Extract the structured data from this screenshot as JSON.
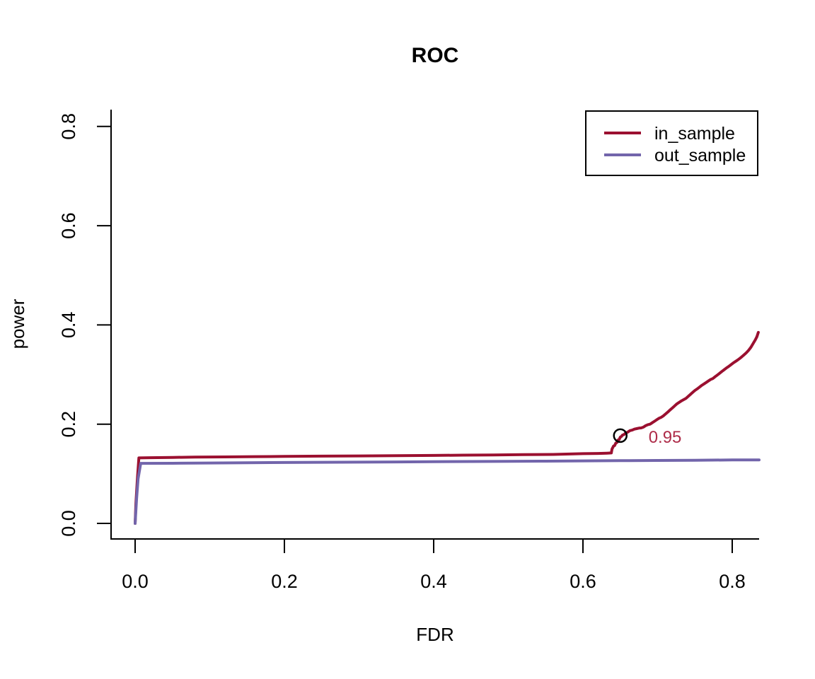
{
  "chart_data": {
    "type": "line",
    "title": "ROC",
    "xlabel": "FDR",
    "ylabel": "power",
    "xlim": [
      0,
      0.836
    ],
    "ylim": [
      0,
      0.836
    ],
    "xticks": [
      0.0,
      0.2,
      0.4,
      0.6,
      0.8
    ],
    "yticks": [
      0.0,
      0.2,
      0.4,
      0.6,
      0.8
    ],
    "xtick_labels": [
      "0.0",
      "0.2",
      "0.4",
      "0.6",
      "0.8"
    ],
    "ytick_labels": [
      "0.0",
      "0.2",
      "0.4",
      "0.6",
      "0.8"
    ],
    "grid": false,
    "box_type": "l-shaped",
    "axis_color": "#000000",
    "legend": {
      "position": "top-right",
      "border_color": "#000000",
      "entries": [
        {
          "label": "in_sample",
          "color": "#9B1030"
        },
        {
          "label": "out_sample",
          "color": "#7265AB"
        }
      ]
    },
    "annotation": {
      "circle_point": [
        0.65,
        0.177
      ],
      "circle_color": "#000000",
      "label": "0.95",
      "label_point": [
        0.71,
        0.175
      ],
      "label_color": "#AE2C49"
    },
    "series": [
      {
        "name": "in_sample",
        "color": "#9B1030",
        "width": 4,
        "points": [
          [
            0,
            0
          ],
          [
            0.001,
            0.04
          ],
          [
            0.003,
            0.09
          ],
          [
            0.005,
            0.132
          ],
          [
            0.02,
            0.1325
          ],
          [
            0.05,
            0.133
          ],
          [
            0.08,
            0.1335
          ],
          [
            0.12,
            0.134
          ],
          [
            0.16,
            0.1345
          ],
          [
            0.2,
            0.135
          ],
          [
            0.25,
            0.1355
          ],
          [
            0.3,
            0.136
          ],
          [
            0.35,
            0.1365
          ],
          [
            0.4,
            0.137
          ],
          [
            0.44,
            0.1375
          ],
          [
            0.48,
            0.138
          ],
          [
            0.52,
            0.1385
          ],
          [
            0.56,
            0.139
          ],
          [
            0.6,
            0.1405
          ],
          [
            0.62,
            0.141
          ],
          [
            0.632,
            0.1415
          ],
          [
            0.638,
            0.142
          ],
          [
            0.639,
            0.15
          ],
          [
            0.64,
            0.153
          ],
          [
            0.641,
            0.156
          ],
          [
            0.6425,
            0.157
          ],
          [
            0.644,
            0.162
          ],
          [
            0.6455,
            0.163
          ],
          [
            0.647,
            0.168
          ],
          [
            0.6485,
            0.169
          ],
          [
            0.65,
            0.174
          ],
          [
            0.6515,
            0.175
          ],
          [
            0.653,
            0.178
          ],
          [
            0.655,
            0.179
          ],
          [
            0.657,
            0.182
          ],
          [
            0.66,
            0.184
          ],
          [
            0.663,
            0.187
          ],
          [
            0.666,
            0.188
          ],
          [
            0.669,
            0.19
          ],
          [
            0.672,
            0.191
          ],
          [
            0.675,
            0.192
          ],
          [
            0.678,
            0.1925
          ],
          [
            0.681,
            0.194
          ],
          [
            0.684,
            0.197
          ],
          [
            0.687,
            0.199
          ],
          [
            0.69,
            0.2
          ],
          [
            0.693,
            0.203
          ],
          [
            0.696,
            0.206
          ],
          [
            0.699,
            0.209
          ],
          [
            0.702,
            0.212
          ],
          [
            0.705,
            0.214
          ],
          [
            0.708,
            0.217
          ],
          [
            0.711,
            0.221
          ],
          [
            0.714,
            0.225
          ],
          [
            0.717,
            0.229
          ],
          [
            0.72,
            0.233
          ],
          [
            0.723,
            0.237
          ],
          [
            0.726,
            0.241
          ],
          [
            0.729,
            0.244
          ],
          [
            0.732,
            0.247
          ],
          [
            0.735,
            0.2495
          ],
          [
            0.738,
            0.252
          ],
          [
            0.741,
            0.256
          ],
          [
            0.744,
            0.26
          ],
          [
            0.747,
            0.264
          ],
          [
            0.75,
            0.268
          ],
          [
            0.753,
            0.271
          ],
          [
            0.756,
            0.2745
          ],
          [
            0.759,
            0.278
          ],
          [
            0.762,
            0.281
          ],
          [
            0.765,
            0.284
          ],
          [
            0.768,
            0.287
          ],
          [
            0.771,
            0.29
          ],
          [
            0.774,
            0.292
          ],
          [
            0.777,
            0.2955
          ],
          [
            0.78,
            0.299
          ],
          [
            0.783,
            0.3025
          ],
          [
            0.786,
            0.306
          ],
          [
            0.789,
            0.3095
          ],
          [
            0.792,
            0.313
          ],
          [
            0.795,
            0.316
          ],
          [
            0.798,
            0.3195
          ],
          [
            0.801,
            0.323
          ],
          [
            0.804,
            0.326
          ],
          [
            0.807,
            0.329
          ],
          [
            0.81,
            0.3325
          ],
          [
            0.813,
            0.336
          ],
          [
            0.816,
            0.34
          ],
          [
            0.819,
            0.344
          ],
          [
            0.822,
            0.349
          ],
          [
            0.825,
            0.355
          ],
          [
            0.828,
            0.3625
          ],
          [
            0.831,
            0.37
          ],
          [
            0.833,
            0.376
          ],
          [
            0.835,
            0.385
          ]
        ]
      },
      {
        "name": "out_sample",
        "color": "#7265AB",
        "width": 4,
        "points": [
          [
            0,
            0
          ],
          [
            0.002,
            0.05
          ],
          [
            0.004,
            0.09
          ],
          [
            0.0075,
            0.121
          ],
          [
            0.05,
            0.1212
          ],
          [
            0.1,
            0.1217
          ],
          [
            0.15,
            0.1222
          ],
          [
            0.2,
            0.1227
          ],
          [
            0.25,
            0.1231
          ],
          [
            0.3,
            0.1235
          ],
          [
            0.35,
            0.1239
          ],
          [
            0.4,
            0.1243
          ],
          [
            0.45,
            0.1247
          ],
          [
            0.5,
            0.1251
          ],
          [
            0.55,
            0.1255
          ],
          [
            0.6,
            0.126
          ],
          [
            0.65,
            0.1264
          ],
          [
            0.7,
            0.1268
          ],
          [
            0.75,
            0.1273
          ],
          [
            0.8,
            0.1278
          ],
          [
            0.836,
            0.128
          ]
        ]
      }
    ]
  }
}
